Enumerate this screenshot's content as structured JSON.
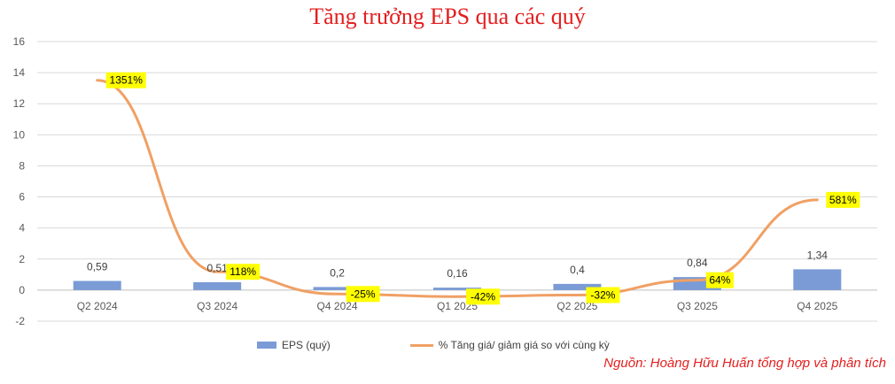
{
  "chart_data": {
    "type": "bar",
    "title": "Tăng trưởng EPS qua các quý",
    "categories": [
      "Q2 2024",
      "Q3 2024",
      "Q4 2024",
      "Q1 2025",
      "Q2 2025",
      "Q3 2025",
      "Q4 2025"
    ],
    "ylim": [
      -2,
      16
    ],
    "yticks": [
      "-2",
      "0",
      "2",
      "4",
      "6",
      "8",
      "10",
      "12",
      "14",
      "16"
    ],
    "grid": true,
    "series": [
      {
        "name": "EPS (quý)",
        "kind": "bar",
        "values": [
          0.59,
          0.51,
          0.2,
          0.16,
          0.4,
          0.84,
          1.34
        ],
        "labels": [
          "0,59",
          "0,51",
          "0,2",
          "0,16",
          "0,4",
          "0,84",
          "1,34"
        ],
        "color": "#7b9bd6"
      },
      {
        "name": "% Tăng giá/ giảm giá so với cùng kỳ",
        "kind": "line",
        "values": [
          13.51,
          1.18,
          -0.25,
          -0.42,
          -0.32,
          0.64,
          5.81
        ],
        "labels": [
          "1351%",
          "118%",
          "-25%",
          "-42%",
          "-32%",
          "64%",
          "581%"
        ],
        "color": "#f0a064",
        "label_bg": "#ffff00"
      }
    ],
    "legend_position": "bottom"
  },
  "source": "Nguồn: Hoàng Hữu Huấn tổng hợp và phân tích"
}
